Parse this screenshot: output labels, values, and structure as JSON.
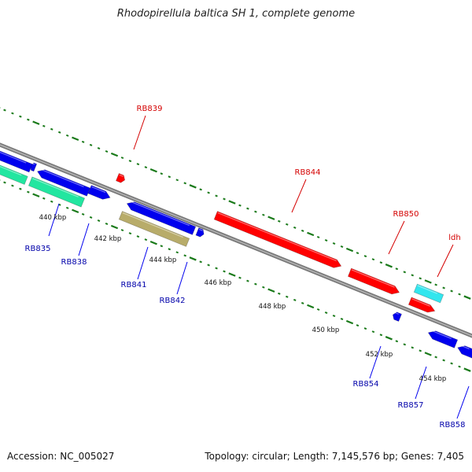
{
  "title": "Rhodopirellula baltica SH 1, complete genome",
  "footer": {
    "accession": "Accession: NC_005027",
    "summary": "Topology: circular; Length: 7,145,576 bp; Genes: 7,405"
  },
  "colors": {
    "backbone": "#8a8a8a",
    "tick": "#1a7a1a",
    "forward": "#ff0000",
    "reverse": "#0000ee",
    "rna": "#22e6a0",
    "misc": "#b8ac6a",
    "cyan": "#33e6ee",
    "forward_label": "#d40000",
    "reverse_label": "#0000aa"
  },
  "scale_labels": [
    "440 kbp",
    "442 kbp",
    "444 kbp",
    "446 kbp",
    "448 kbp",
    "450 kbp",
    "452 kbp",
    "454 kbp"
  ],
  "forward_genes": [
    {
      "name": "RB839"
    },
    {
      "name": "RB844"
    },
    {
      "name": "RB850"
    },
    {
      "name": "ldh"
    }
  ],
  "reverse_genes": [
    {
      "name": "RB835"
    },
    {
      "name": "RB838"
    },
    {
      "name": "RB841"
    },
    {
      "name": "RB842"
    },
    {
      "name": "RB854"
    },
    {
      "name": "RB857"
    },
    {
      "name": "RB858"
    }
  ]
}
